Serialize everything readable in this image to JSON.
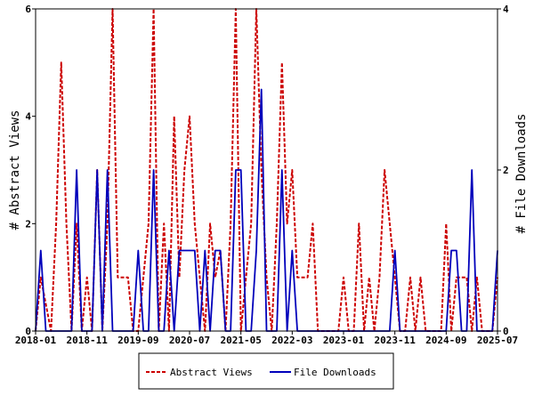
{
  "chart_data": {
    "type": "line",
    "title": "",
    "xlabel": "",
    "ylabel_left": "# Abstract Views",
    "ylabel_right": "# File Downloads",
    "x_tick_labels": [
      "2018-01",
      "2018-11",
      "2019-09",
      "2020-07",
      "2021-05",
      "2022-03",
      "2023-01",
      "2023-11",
      "2024-09",
      "2025-07"
    ],
    "x_range": [
      "2018-01",
      "2025-07"
    ],
    "ylim_left": [
      0,
      6
    ],
    "ylim_right": [
      0,
      4
    ],
    "y_ticks_left": [
      0,
      2,
      4,
      6
    ],
    "y_ticks_right": [
      0,
      2,
      4
    ],
    "grid": false,
    "legend_position": "bottom-center",
    "series": [
      {
        "name": "Abstract Views",
        "axis": "left",
        "color": "#cc0000",
        "style": "dashed",
        "points": [
          [
            "2018-01",
            0
          ],
          [
            "2018-02",
            1
          ],
          [
            "2018-03",
            0.5
          ],
          [
            "2018-04",
            0
          ],
          [
            "2018-05",
            2
          ],
          [
            "2018-06",
            5
          ],
          [
            "2018-07",
            2
          ],
          [
            "2018-08",
            0
          ],
          [
            "2018-09",
            2
          ],
          [
            "2018-10",
            0
          ],
          [
            "2018-11",
            1
          ],
          [
            "2018-12",
            0
          ],
          [
            "2019-01",
            3
          ],
          [
            "2019-02",
            0
          ],
          [
            "2019-03",
            2
          ],
          [
            "2019-04",
            6
          ],
          [
            "2019-05",
            1
          ],
          [
            "2019-06",
            1
          ],
          [
            "2019-07",
            1
          ],
          [
            "2019-08",
            0
          ],
          [
            "2019-09",
            0
          ],
          [
            "2019-10",
            1
          ],
          [
            "2019-11",
            2
          ],
          [
            "2019-12",
            6
          ],
          [
            "2020-01",
            0
          ],
          [
            "2020-02",
            2
          ],
          [
            "2020-03",
            0
          ],
          [
            "2020-04",
            4
          ],
          [
            "2020-05",
            1
          ],
          [
            "2020-06",
            3
          ],
          [
            "2020-07",
            4
          ],
          [
            "2020-08",
            2
          ],
          [
            "2020-09",
            1
          ],
          [
            "2020-10",
            0
          ],
          [
            "2020-11",
            2
          ],
          [
            "2020-12",
            1
          ],
          [
            "2021-01",
            1.5
          ],
          [
            "2021-02",
            0
          ],
          [
            "2021-03",
            2
          ],
          [
            "2021-04",
            6
          ],
          [
            "2021-05",
            0
          ],
          [
            "2021-06",
            1
          ],
          [
            "2021-07",
            2
          ],
          [
            "2021-08",
            6
          ],
          [
            "2021-09",
            3
          ],
          [
            "2021-10",
            1
          ],
          [
            "2021-11",
            0
          ],
          [
            "2021-12",
            2
          ],
          [
            "2022-01",
            5
          ],
          [
            "2022-02",
            2
          ],
          [
            "2022-03",
            3
          ],
          [
            "2022-04",
            1
          ],
          [
            "2022-05",
            1
          ],
          [
            "2022-06",
            1
          ],
          [
            "2022-07",
            2
          ],
          [
            "2022-08",
            0
          ],
          [
            "2022-09",
            0
          ],
          [
            "2022-10",
            0
          ],
          [
            "2022-11",
            0
          ],
          [
            "2022-12",
            0
          ],
          [
            "2023-01",
            1
          ],
          [
            "2023-02",
            0
          ],
          [
            "2023-03",
            0
          ],
          [
            "2023-04",
            2
          ],
          [
            "2023-05",
            0
          ],
          [
            "2023-06",
            1
          ],
          [
            "2023-07",
            0
          ],
          [
            "2023-08",
            1
          ],
          [
            "2023-09",
            3
          ],
          [
            "2023-10",
            2
          ],
          [
            "2023-11",
            1
          ],
          [
            "2023-12",
            0
          ],
          [
            "2024-01",
            0
          ],
          [
            "2024-02",
            1
          ],
          [
            "2024-03",
            0
          ],
          [
            "2024-04",
            1
          ],
          [
            "2024-05",
            0
          ],
          [
            "2024-06",
            0
          ],
          [
            "2024-07",
            0
          ],
          [
            "2024-08",
            0
          ],
          [
            "2024-09",
            2
          ],
          [
            "2024-10",
            0
          ],
          [
            "2024-11",
            1
          ],
          [
            "2024-12",
            1
          ],
          [
            "2025-01",
            1
          ],
          [
            "2025-02",
            0
          ],
          [
            "2025-03",
            1
          ],
          [
            "2025-04",
            0
          ],
          [
            "2025-05",
            0
          ],
          [
            "2025-06",
            0
          ],
          [
            "2025-07",
            1
          ]
        ]
      },
      {
        "name": "File Downloads",
        "axis": "right",
        "color": "#0000bb",
        "style": "solid",
        "points": [
          [
            "2018-01",
            0
          ],
          [
            "2018-02",
            1
          ],
          [
            "2018-03",
            0
          ],
          [
            "2018-04",
            0
          ],
          [
            "2018-05",
            0
          ],
          [
            "2018-06",
            0
          ],
          [
            "2018-07",
            0
          ],
          [
            "2018-08",
            0
          ],
          [
            "2018-09",
            2
          ],
          [
            "2018-10",
            0
          ],
          [
            "2018-11",
            0
          ],
          [
            "2018-12",
            0
          ],
          [
            "2019-01",
            2
          ],
          [
            "2019-02",
            0
          ],
          [
            "2019-03",
            2
          ],
          [
            "2019-04",
            0
          ],
          [
            "2019-05",
            0
          ],
          [
            "2019-06",
            0
          ],
          [
            "2019-07",
            0
          ],
          [
            "2019-08",
            0
          ],
          [
            "2019-09",
            1
          ],
          [
            "2019-10",
            0
          ],
          [
            "2019-11",
            0
          ],
          [
            "2019-12",
            2
          ],
          [
            "2020-01",
            0
          ],
          [
            "2020-02",
            0
          ],
          [
            "2020-03",
            1
          ],
          [
            "2020-04",
            0
          ],
          [
            "2020-05",
            1
          ],
          [
            "2020-06",
            1
          ],
          [
            "2020-07",
            1
          ],
          [
            "2020-08",
            1
          ],
          [
            "2020-09",
            0
          ],
          [
            "2020-10",
            1
          ],
          [
            "2020-11",
            0
          ],
          [
            "2020-12",
            1
          ],
          [
            "2021-01",
            1
          ],
          [
            "2021-02",
            0
          ],
          [
            "2021-03",
            0
          ],
          [
            "2021-04",
            2
          ],
          [
            "2021-05",
            2
          ],
          [
            "2021-06",
            0
          ],
          [
            "2021-07",
            0
          ],
          [
            "2021-08",
            1
          ],
          [
            "2021-09",
            3
          ],
          [
            "2021-10",
            0
          ],
          [
            "2021-11",
            0
          ],
          [
            "2021-12",
            0
          ],
          [
            "2022-01",
            2
          ],
          [
            "2022-02",
            0
          ],
          [
            "2022-03",
            1
          ],
          [
            "2022-04",
            0
          ],
          [
            "2022-05",
            0
          ],
          [
            "2022-06",
            0
          ],
          [
            "2022-07",
            0
          ],
          [
            "2022-08",
            0
          ],
          [
            "2022-09",
            0
          ],
          [
            "2022-10",
            0
          ],
          [
            "2022-11",
            0
          ],
          [
            "2022-12",
            0
          ],
          [
            "2023-01",
            0
          ],
          [
            "2023-02",
            0
          ],
          [
            "2023-03",
            0
          ],
          [
            "2023-04",
            0
          ],
          [
            "2023-05",
            0
          ],
          [
            "2023-06",
            0
          ],
          [
            "2023-07",
            0
          ],
          [
            "2023-08",
            0
          ],
          [
            "2023-09",
            0
          ],
          [
            "2023-10",
            0
          ],
          [
            "2023-11",
            1
          ],
          [
            "2023-12",
            0
          ],
          [
            "2024-01",
            0
          ],
          [
            "2024-02",
            0
          ],
          [
            "2024-03",
            0
          ],
          [
            "2024-04",
            0
          ],
          [
            "2024-05",
            0
          ],
          [
            "2024-06",
            0
          ],
          [
            "2024-07",
            0
          ],
          [
            "2024-08",
            0
          ],
          [
            "2024-09",
            0
          ],
          [
            "2024-10",
            1
          ],
          [
            "2024-11",
            1
          ],
          [
            "2024-12",
            0
          ],
          [
            "2025-01",
            0
          ],
          [
            "2025-02",
            2
          ],
          [
            "2025-03",
            0
          ],
          [
            "2025-04",
            0
          ],
          [
            "2025-05",
            0
          ],
          [
            "2025-06",
            0
          ],
          [
            "2025-07",
            1
          ]
        ]
      }
    ]
  }
}
